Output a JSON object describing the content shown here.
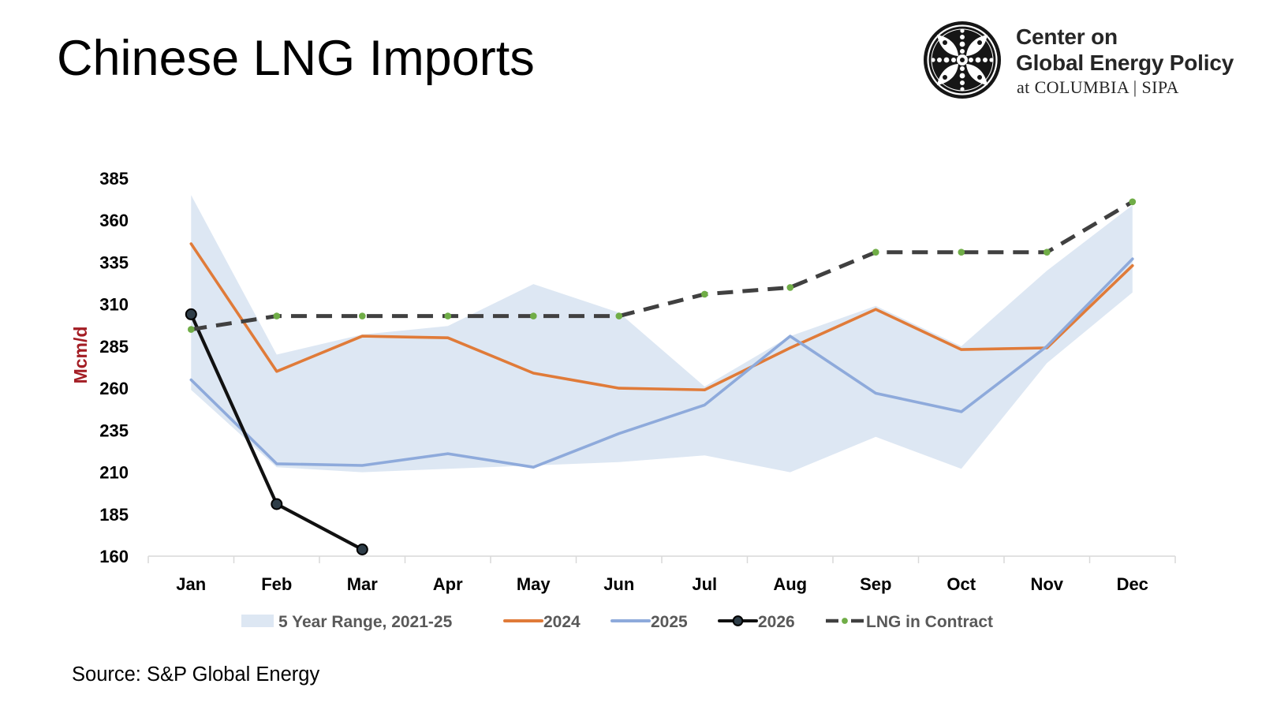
{
  "logo": {
    "icon": "cgep-emblem-icon",
    "line1": "Center on",
    "line2": "Global Energy Policy",
    "line3": "at COLUMBIA | SIPA"
  },
  "colors": {
    "text": "#000000",
    "logo_text": "#262626",
    "ylabel": "#a31d24",
    "axis": "#d9d9d9",
    "legend_text": "#595959"
  },
  "chart_data": {
    "type": "line",
    "title": "Chinese LNG Imports",
    "source": "Source: S&P Global Energy",
    "ylabel": "Mcm/d",
    "ylim": [
      160,
      385
    ],
    "y_ticks": [
      160,
      185,
      210,
      235,
      260,
      285,
      310,
      335,
      360,
      385
    ],
    "categories": [
      "Jan",
      "Feb",
      "Mar",
      "Apr",
      "May",
      "Jun",
      "Jul",
      "Aug",
      "Sep",
      "Oct",
      "Nov",
      "Dec"
    ],
    "grid": false,
    "legend_position": "bottom",
    "range": {
      "name": "5 Year Range, 2021-25",
      "upper": [
        375,
        280,
        292,
        297,
        322,
        305,
        261,
        291,
        309,
        285,
        330,
        369
      ],
      "lower": [
        259,
        213,
        210,
        212,
        214,
        216,
        220,
        210,
        231,
        212,
        275,
        317
      ],
      "color": "#dde7f3"
    },
    "series": [
      {
        "name": "2024",
        "values": [
          346,
          270,
          291,
          290,
          269,
          260,
          259,
          284,
          307,
          283,
          284,
          333
        ],
        "color": "#e07b39"
      },
      {
        "name": "2025",
        "values": [
          265,
          215,
          214,
          221,
          213,
          233,
          250,
          291,
          257,
          246,
          285,
          337
        ],
        "color": "#8eaadb"
      },
      {
        "name": "2026",
        "values": [
          304,
          191,
          164,
          null,
          null,
          null,
          null,
          null,
          null,
          null,
          null,
          null
        ],
        "color": "#111111",
        "marker_color": "#2e3d48"
      },
      {
        "name": "LNG in Contract",
        "values": [
          295,
          303,
          303,
          303,
          303,
          303,
          316,
          320,
          341,
          341,
          341,
          371
        ],
        "color": "#404040",
        "marker_color": "#70ad47"
      }
    ]
  }
}
